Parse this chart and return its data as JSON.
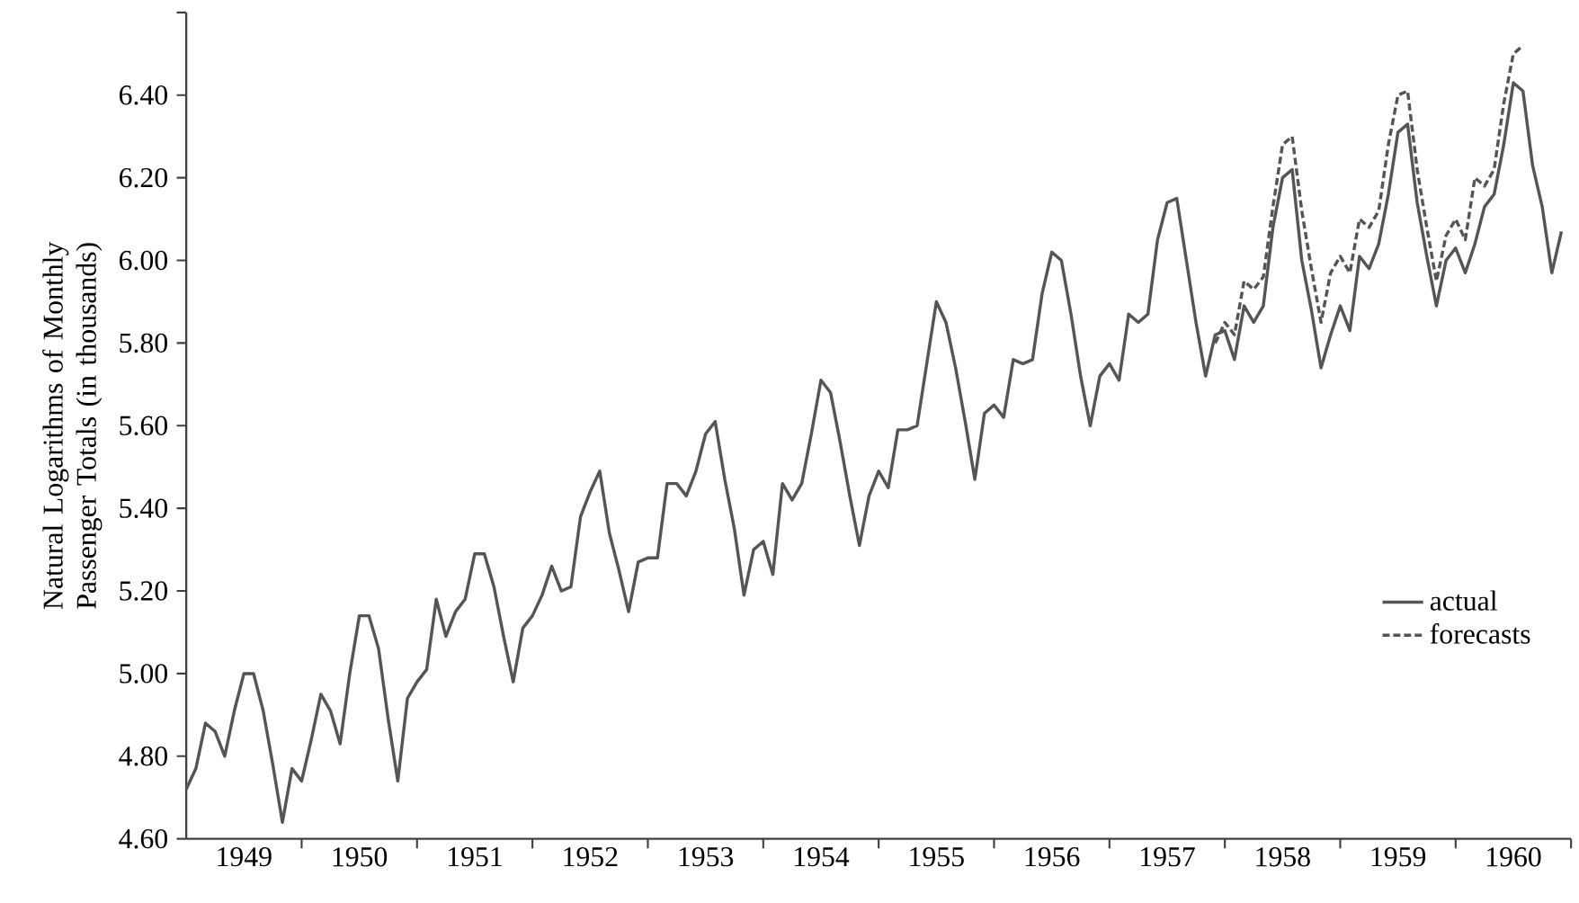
{
  "chart_data": {
    "type": "line",
    "ylabel": "Natural Logarithms of Monthly Passenger Totals (in thousands)",
    "xlim": [
      "1949-01",
      "1961-01"
    ],
    "xticks": [
      {
        "value": "1949-07",
        "label": "1949"
      },
      {
        "value": "1950-07",
        "label": "1950"
      },
      {
        "value": "1951-07",
        "label": "1951"
      },
      {
        "value": "1952-07",
        "label": "1952"
      },
      {
        "value": "1953-07",
        "label": "1953"
      },
      {
        "value": "1954-07",
        "label": "1954"
      },
      {
        "value": "1955-07",
        "label": "1955"
      },
      {
        "value": "1956-07",
        "label": "1956"
      },
      {
        "value": "1957-07",
        "label": "1957"
      },
      {
        "value": "1958-07",
        "label": "1958"
      },
      {
        "value": "1959-07",
        "label": "1959"
      },
      {
        "value": "1960-07",
        "label": "1960"
      },
      {
        "value": "1950-01",
        "label": null
      },
      {
        "value": "1951-01",
        "label": null
      },
      {
        "value": "1952-01",
        "label": null
      },
      {
        "value": "1953-01",
        "label": null
      },
      {
        "value": "1954-01",
        "label": null
      },
      {
        "value": "1955-01",
        "label": null
      },
      {
        "value": "1956-01",
        "label": null
      },
      {
        "value": "1957-01",
        "label": null
      },
      {
        "value": "1958-01",
        "label": null
      },
      {
        "value": "1959-01",
        "label": null
      },
      {
        "value": "1960-01",
        "label": null
      },
      {
        "value": "1961-01",
        "label": null
      }
    ],
    "ylim": [
      4.6,
      6.6
    ],
    "yticks": [
      {
        "value": 4.6,
        "label": "4.60"
      },
      {
        "value": 4.8,
        "label": "4.80"
      },
      {
        "value": 5.0,
        "label": "5.00"
      },
      {
        "value": 5.2,
        "label": "5.20"
      },
      {
        "value": 5.4,
        "label": "5.40"
      },
      {
        "value": 5.6,
        "label": "5.60"
      },
      {
        "value": 5.8,
        "label": "5.80"
      },
      {
        "value": 6.0,
        "label": "6.00"
      },
      {
        "value": 6.2,
        "label": "6.20"
      },
      {
        "value": 6.4,
        "label": "6.40"
      },
      {
        "value": 6.6,
        "label": null
      }
    ],
    "grid": false,
    "legend": "bottom right",
    "marker": "none",
    "series": [
      {
        "name": "actual",
        "color": "#555555",
        "line_style": "solid",
        "x": [
          "1949-01",
          "1949-02",
          "1949-03",
          "1949-04",
          "1949-05",
          "1949-06",
          "1949-07",
          "1949-08",
          "1949-09",
          "1949-10",
          "1949-11",
          "1949-12",
          "1950-01",
          "1950-02",
          "1950-03",
          "1950-04",
          "1950-05",
          "1950-06",
          "1950-07",
          "1950-08",
          "1950-09",
          "1950-10",
          "1950-11",
          "1950-12",
          "1951-01",
          "1951-02",
          "1951-03",
          "1951-04",
          "1951-05",
          "1951-06",
          "1951-07",
          "1951-08",
          "1951-09",
          "1951-10",
          "1951-11",
          "1951-12",
          "1952-01",
          "1952-02",
          "1952-03",
          "1952-04",
          "1952-05",
          "1952-06",
          "1952-07",
          "1952-08",
          "1952-09",
          "1952-10",
          "1952-11",
          "1952-12",
          "1953-01",
          "1953-02",
          "1953-03",
          "1953-04",
          "1953-05",
          "1953-06",
          "1953-07",
          "1953-08",
          "1953-09",
          "1953-10",
          "1953-11",
          "1953-12",
          "1954-01",
          "1954-02",
          "1954-03",
          "1954-04",
          "1954-05",
          "1954-06",
          "1954-07",
          "1954-08",
          "1954-09",
          "1954-10",
          "1954-11",
          "1954-12",
          "1955-01",
          "1955-02",
          "1955-03",
          "1955-04",
          "1955-05",
          "1955-06",
          "1955-07",
          "1955-08",
          "1955-09",
          "1955-10",
          "1955-11",
          "1955-12",
          "1956-01",
          "1956-02",
          "1956-03",
          "1956-04",
          "1956-05",
          "1956-06",
          "1956-07",
          "1956-08",
          "1956-09",
          "1956-10",
          "1956-11",
          "1956-12",
          "1957-01",
          "1957-02",
          "1957-03",
          "1957-04",
          "1957-05",
          "1957-06",
          "1957-07",
          "1957-08",
          "1957-09",
          "1957-10",
          "1957-11",
          "1957-12",
          "1958-01",
          "1958-02",
          "1958-03",
          "1958-04",
          "1958-05",
          "1958-06",
          "1958-07",
          "1958-08",
          "1958-09",
          "1958-10",
          "1958-11",
          "1958-12",
          "1959-01",
          "1959-02",
          "1959-03",
          "1959-04",
          "1959-05",
          "1959-06",
          "1959-07",
          "1959-08",
          "1959-09",
          "1959-10",
          "1959-11",
          "1959-12",
          "1960-01",
          "1960-02",
          "1960-03",
          "1960-04",
          "1960-05",
          "1960-06",
          "1960-07",
          "1960-08",
          "1960-09",
          "1960-10",
          "1960-11",
          "1960-12"
        ],
        "values": [
          4.72,
          4.77,
          4.88,
          4.86,
          4.8,
          4.91,
          5.0,
          5.0,
          4.91,
          4.78,
          4.64,
          4.77,
          4.74,
          4.84,
          4.95,
          4.91,
          4.83,
          5.0,
          5.14,
          5.14,
          5.06,
          4.89,
          4.74,
          4.94,
          4.98,
          5.01,
          5.18,
          5.09,
          5.15,
          5.18,
          5.29,
          5.29,
          5.21,
          5.09,
          4.98,
          5.11,
          5.14,
          5.19,
          5.26,
          5.2,
          5.21,
          5.38,
          5.44,
          5.49,
          5.34,
          5.25,
          5.15,
          5.27,
          5.28,
          5.28,
          5.46,
          5.46,
          5.43,
          5.49,
          5.58,
          5.61,
          5.47,
          5.35,
          5.19,
          5.3,
          5.32,
          5.24,
          5.46,
          5.42,
          5.46,
          5.58,
          5.71,
          5.68,
          5.56,
          5.43,
          5.31,
          5.43,
          5.49,
          5.45,
          5.59,
          5.59,
          5.6,
          5.75,
          5.9,
          5.85,
          5.74,
          5.61,
          5.47,
          5.63,
          5.65,
          5.62,
          5.76,
          5.75,
          5.76,
          5.92,
          6.02,
          6.0,
          5.87,
          5.72,
          5.6,
          5.72,
          5.75,
          5.71,
          5.87,
          5.85,
          5.87,
          6.05,
          6.14,
          6.15,
          6.0,
          5.85,
          5.72,
          5.82,
          5.83,
          5.76,
          5.89,
          5.85,
          5.89,
          6.08,
          6.2,
          6.22,
          6.0,
          5.88,
          5.74,
          5.82,
          5.89,
          5.83,
          6.01,
          5.98,
          6.04,
          6.16,
          6.31,
          6.33,
          6.14,
          6.01,
          5.89,
          6.0,
          6.03,
          5.97,
          6.04,
          6.13,
          6.16,
          6.28,
          6.43,
          6.41,
          6.23,
          6.13,
          5.97,
          6.07
        ]
      },
      {
        "name": "forecasts",
        "color": "#555555",
        "line_style": "dashed",
        "x": [
          "1957-12",
          "1958-01",
          "1958-02",
          "1958-03",
          "1958-04",
          "1958-05",
          "1958-06",
          "1958-07",
          "1958-08",
          "1958-09",
          "1958-10",
          "1958-11",
          "1958-12",
          "1959-01",
          "1959-02",
          "1959-03",
          "1959-04",
          "1959-05",
          "1959-06",
          "1959-07",
          "1959-08",
          "1959-09",
          "1959-10",
          "1959-11",
          "1959-12",
          "1960-01",
          "1960-02",
          "1960-03",
          "1960-04",
          "1960-05",
          "1960-06",
          "1960-07",
          "1960-08"
        ],
        "values": [
          5.8,
          5.85,
          5.82,
          5.95,
          5.93,
          5.96,
          6.13,
          6.28,
          6.3,
          6.12,
          5.98,
          5.85,
          5.97,
          6.01,
          5.97,
          6.1,
          6.08,
          6.12,
          6.28,
          6.4,
          6.41,
          6.22,
          6.08,
          5.95,
          6.06,
          6.1,
          6.05,
          6.2,
          6.18,
          6.22,
          6.38,
          6.5,
          6.52
        ]
      }
    ]
  }
}
